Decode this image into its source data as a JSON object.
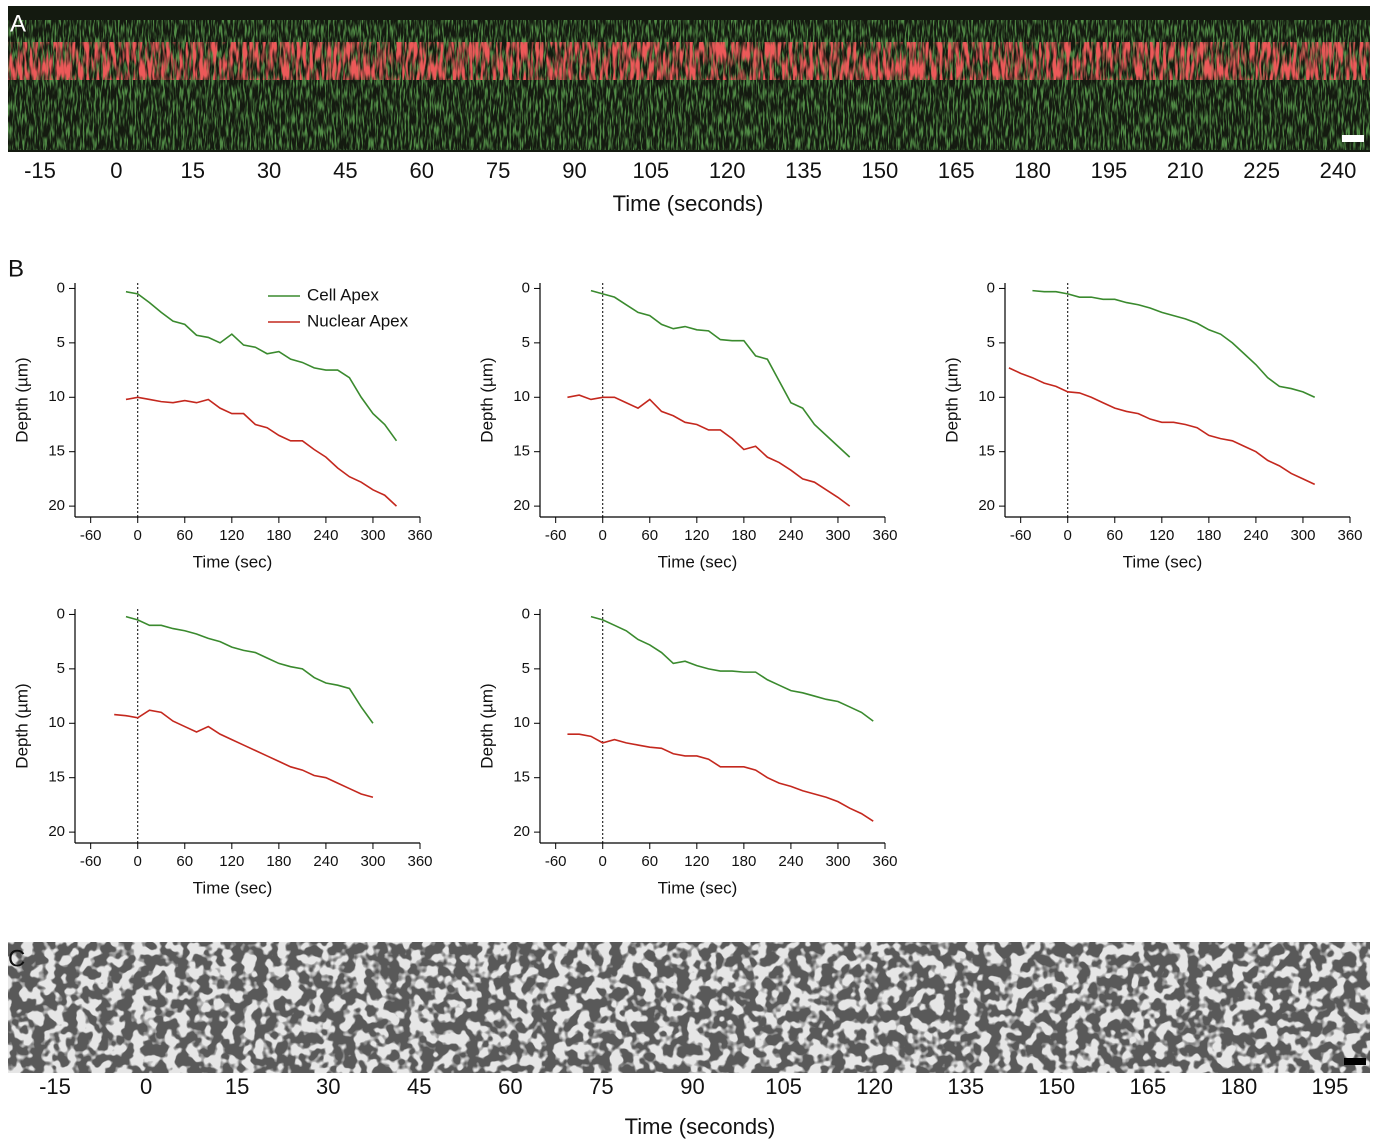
{
  "panel_a": {
    "label": "A",
    "time_labels": [
      -15,
      0,
      15,
      30,
      45,
      60,
      75,
      90,
      105,
      120,
      135,
      150,
      165,
      180,
      195,
      210,
      225,
      240
    ],
    "axis_label": "Time (seconds)"
  },
  "panel_b": {
    "label": "B"
  },
  "panel_c": {
    "label": "C",
    "time_labels": [
      -15,
      0,
      15,
      30,
      45,
      60,
      75,
      90,
      105,
      120,
      135,
      150,
      165,
      180,
      195
    ],
    "axis_label": "Time (seconds)"
  },
  "chart_data": [
    {
      "type": "line",
      "xlabel": "Time (sec)",
      "ylabel": "Depth (µm)",
      "xlim": [
        -80,
        360
      ],
      "ylim": [
        -0.5,
        21
      ],
      "y_inverted": true,
      "xticks": [
        -60,
        0,
        60,
        120,
        180,
        240,
        300,
        360
      ],
      "yticks": [
        0,
        5,
        10,
        15,
        20
      ],
      "vline": 0,
      "legend": "upper center",
      "x": [
        -15,
        0,
        15,
        30,
        45,
        60,
        75,
        90,
        105,
        120,
        135,
        150,
        165,
        180,
        195,
        210,
        225,
        240,
        255,
        270,
        285,
        300,
        315,
        330
      ],
      "series": [
        {
          "name": "Cell Apex",
          "color": "#3a8a2e",
          "values": [
            0.3,
            0.5,
            1.3,
            2.2,
            3.0,
            3.3,
            4.3,
            4.5,
            5.0,
            4.2,
            5.2,
            5.4,
            6.0,
            5.8,
            6.5,
            6.8,
            7.3,
            7.5,
            7.5,
            8.2,
            10.0,
            11.5,
            12.5,
            14.0
          ]
        },
        {
          "name": "Nuclear Apex",
          "color": "#c4281e",
          "values": [
            10.2,
            10.0,
            10.2,
            10.4,
            10.5,
            10.3,
            10.5,
            10.2,
            11.0,
            11.5,
            11.5,
            12.5,
            12.8,
            13.5,
            14.0,
            14.0,
            14.8,
            15.5,
            16.5,
            17.3,
            17.8,
            18.5,
            19.0,
            20.0
          ]
        }
      ]
    },
    {
      "type": "line",
      "xlabel": "Time (sec)",
      "ylabel": "Depth (µm)",
      "xlim": [
        -80,
        360
      ],
      "ylim": [
        -0.5,
        21
      ],
      "y_inverted": true,
      "xticks": [
        -60,
        0,
        60,
        120,
        180,
        240,
        300,
        360
      ],
      "yticks": [
        0,
        5,
        10,
        15,
        20
      ],
      "vline": 0,
      "x": [
        -45,
        -30,
        -15,
        0,
        15,
        30,
        45,
        60,
        75,
        90,
        105,
        120,
        135,
        150,
        165,
        180,
        195,
        210,
        225,
        240,
        255,
        270,
        285,
        300,
        315
      ],
      "series": [
        {
          "name": "Cell Apex",
          "color": "#3a8a2e",
          "values": [
            null,
            null,
            0.2,
            0.5,
            0.8,
            1.5,
            2.2,
            2.5,
            3.3,
            3.7,
            3.5,
            3.8,
            3.9,
            4.7,
            4.8,
            4.8,
            6.2,
            6.5,
            8.5,
            10.5,
            11.0,
            12.5,
            13.5,
            14.5,
            15.5
          ]
        },
        {
          "name": "Nuclear Apex",
          "color": "#c4281e",
          "values": [
            10.0,
            9.8,
            10.2,
            10.0,
            10.0,
            10.5,
            11.0,
            10.2,
            11.3,
            11.7,
            12.3,
            12.5,
            13.0,
            13.0,
            13.8,
            14.8,
            14.5,
            15.5,
            16.0,
            16.7,
            17.5,
            17.8,
            18.5,
            19.2,
            20.0
          ]
        }
      ]
    },
    {
      "type": "line",
      "xlabel": "Time (sec)",
      "ylabel": "Depth (µm)",
      "xlim": [
        -80,
        360
      ],
      "ylim": [
        -0.5,
        21
      ],
      "y_inverted": true,
      "xticks": [
        -60,
        0,
        60,
        120,
        180,
        240,
        300,
        360
      ],
      "yticks": [
        0,
        5,
        10,
        15,
        20
      ],
      "vline": 0,
      "x": [
        -75,
        -60,
        -45,
        -30,
        -15,
        0,
        15,
        30,
        45,
        60,
        75,
        90,
        105,
        120,
        135,
        150,
        165,
        180,
        195,
        210,
        225,
        240,
        255,
        270,
        285,
        300,
        315
      ],
      "series": [
        {
          "name": "Cell Apex",
          "color": "#3a8a2e",
          "values": [
            null,
            null,
            0.2,
            0.3,
            0.3,
            0.5,
            0.8,
            0.8,
            1.0,
            1.0,
            1.3,
            1.5,
            1.8,
            2.2,
            2.5,
            2.8,
            3.2,
            3.8,
            4.2,
            5.0,
            6.0,
            7.0,
            8.2,
            9.0,
            9.2,
            9.5,
            10.0
          ]
        },
        {
          "name": "Nuclear Apex",
          "color": "#c4281e",
          "values": [
            7.3,
            7.8,
            8.2,
            8.7,
            9.0,
            9.5,
            9.6,
            10.0,
            10.5,
            11.0,
            11.3,
            11.5,
            12.0,
            12.3,
            12.3,
            12.5,
            12.8,
            13.5,
            13.8,
            14.0,
            14.5,
            15.0,
            15.8,
            16.3,
            17.0,
            17.5,
            18.0
          ]
        }
      ]
    },
    {
      "type": "line",
      "xlabel": "Time (sec)",
      "ylabel": "Depth (µm)",
      "xlim": [
        -80,
        360
      ],
      "ylim": [
        -0.5,
        21
      ],
      "y_inverted": true,
      "xticks": [
        -60,
        0,
        60,
        120,
        180,
        240,
        300,
        360
      ],
      "yticks": [
        0,
        5,
        10,
        15,
        20
      ],
      "vline": 0,
      "x": [
        -30,
        -15,
        0,
        15,
        30,
        45,
        60,
        75,
        90,
        105,
        120,
        135,
        150,
        165,
        180,
        195,
        210,
        225,
        240,
        255,
        270,
        285,
        300
      ],
      "series": [
        {
          "name": "Cell Apex",
          "color": "#3a8a2e",
          "values": [
            null,
            0.2,
            0.5,
            1.0,
            1.0,
            1.3,
            1.5,
            1.8,
            2.2,
            2.5,
            3.0,
            3.3,
            3.5,
            4.0,
            4.5,
            4.8,
            5.0,
            5.8,
            6.3,
            6.5,
            6.8,
            8.5,
            10.0
          ]
        },
        {
          "name": "Nuclear Apex",
          "color": "#c4281e",
          "values": [
            9.2,
            9.3,
            9.5,
            8.8,
            9.0,
            9.8,
            10.3,
            10.8,
            10.3,
            11.0,
            11.5,
            12.0,
            12.5,
            13.0,
            13.5,
            14.0,
            14.3,
            14.8,
            15.0,
            15.5,
            16.0,
            16.5,
            16.8
          ]
        }
      ]
    },
    {
      "type": "line",
      "xlabel": "Time (sec)",
      "ylabel": "Depth (µm)",
      "xlim": [
        -80,
        360
      ],
      "ylim": [
        -0.5,
        21
      ],
      "y_inverted": true,
      "xticks": [
        -60,
        0,
        60,
        120,
        180,
        240,
        300,
        360
      ],
      "yticks": [
        0,
        5,
        10,
        15,
        20
      ],
      "vline": 0,
      "x": [
        -45,
        -30,
        -15,
        0,
        15,
        30,
        45,
        60,
        75,
        90,
        105,
        120,
        135,
        150,
        165,
        180,
        195,
        210,
        225,
        240,
        255,
        270,
        285,
        300,
        315,
        330,
        345
      ],
      "series": [
        {
          "name": "Cell Apex",
          "color": "#3a8a2e",
          "values": [
            null,
            null,
            0.2,
            0.5,
            1.0,
            1.5,
            2.3,
            2.8,
            3.5,
            4.5,
            4.3,
            4.7,
            5.0,
            5.2,
            5.2,
            5.3,
            5.3,
            6.0,
            6.5,
            7.0,
            7.2,
            7.5,
            7.8,
            8.0,
            8.5,
            9.0,
            9.8
          ]
        },
        {
          "name": "Nuclear Apex",
          "color": "#c4281e",
          "values": [
            11.0,
            11.0,
            11.2,
            11.8,
            11.5,
            11.8,
            12.0,
            12.2,
            12.3,
            12.8,
            13.0,
            13.0,
            13.3,
            14.0,
            14.0,
            14.0,
            14.3,
            15.0,
            15.5,
            15.8,
            16.2,
            16.5,
            16.8,
            17.2,
            17.8,
            18.3,
            19.0
          ]
        }
      ]
    }
  ]
}
